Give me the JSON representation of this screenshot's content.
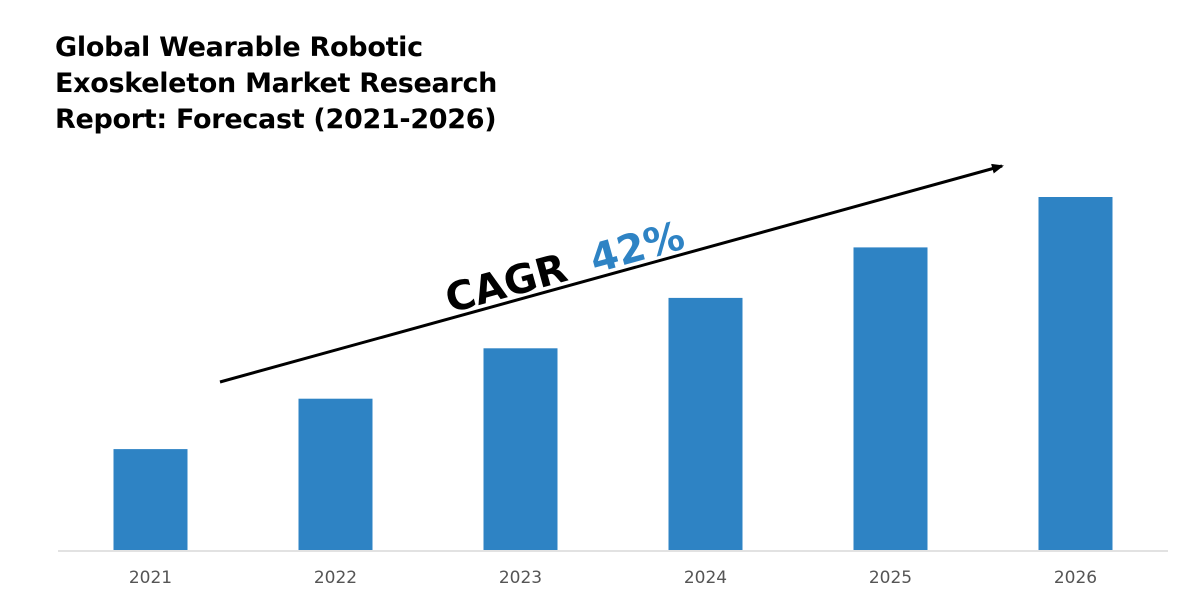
{
  "chart_data": {
    "type": "bar",
    "title": "Global Wearable Robotic Exoskeleton Market Research Report: Forecast (2021-2026)",
    "categories": [
      "2021",
      "2022",
      "2023",
      "2024",
      "2025",
      "2026"
    ],
    "values": [
      1,
      1.5,
      2,
      2.5,
      3,
      3.5
    ],
    "xlabel": "",
    "ylabel": "",
    "ylim": [
      0,
      3.5
    ],
    "grid": false,
    "annotation": {
      "prefix": "CAGR",
      "value": "42%"
    },
    "colors": {
      "bar": "#2e83c4",
      "annotation_value": "#2e83c4",
      "annotation_prefix": "#000000",
      "baseline": "#d9d9d9",
      "tick_label": "#555555"
    }
  }
}
